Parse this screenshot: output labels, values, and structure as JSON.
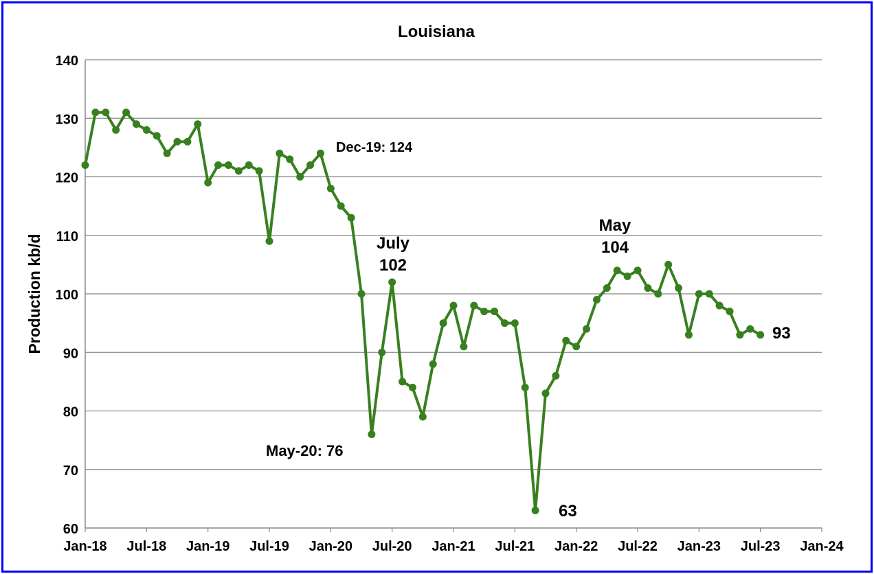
{
  "chart_data": {
    "type": "line",
    "title": "Louisiana",
    "xlabel": "",
    "ylabel": "Production kb/d",
    "ylim": [
      60,
      140
    ],
    "yticks": [
      60,
      70,
      80,
      90,
      100,
      110,
      120,
      130,
      140
    ],
    "xlim": [
      "2018-01",
      "2024-01"
    ],
    "xtick_labels": [
      "Jan-18",
      "Jul-18",
      "Jan-19",
      "Jul-19",
      "Jan-20",
      "Jul-20",
      "Jan-21",
      "Jul-21",
      "Jan-22",
      "Jul-22",
      "Jan-23",
      "Jul-23",
      "Jan-24"
    ],
    "grid": "horizontal",
    "legend": "none",
    "color": "#38801f",
    "x": [
      "2018-01",
      "2018-02",
      "2018-03",
      "2018-04",
      "2018-05",
      "2018-06",
      "2018-07",
      "2018-08",
      "2018-09",
      "2018-10",
      "2018-11",
      "2018-12",
      "2019-01",
      "2019-02",
      "2019-03",
      "2019-04",
      "2019-05",
      "2019-06",
      "2019-07",
      "2019-08",
      "2019-09",
      "2019-10",
      "2019-11",
      "2019-12",
      "2020-01",
      "2020-02",
      "2020-03",
      "2020-04",
      "2020-05",
      "2020-06",
      "2020-07",
      "2020-08",
      "2020-09",
      "2020-10",
      "2020-11",
      "2020-12",
      "2021-01",
      "2021-02",
      "2021-03",
      "2021-04",
      "2021-05",
      "2021-06",
      "2021-07",
      "2021-08",
      "2021-09",
      "2021-10",
      "2021-11",
      "2021-12",
      "2022-01",
      "2022-02",
      "2022-03",
      "2022-04",
      "2022-05",
      "2022-06",
      "2022-07",
      "2022-08",
      "2022-09",
      "2022-10",
      "2022-11",
      "2022-12",
      "2023-01",
      "2023-02",
      "2023-03",
      "2023-04",
      "2023-05",
      "2023-06",
      "2023-07"
    ],
    "values": [
      122,
      131,
      131,
      128,
      131,
      129,
      128,
      127,
      124,
      126,
      126,
      129,
      119,
      122,
      122,
      121,
      122,
      121,
      109,
      124,
      123,
      120,
      122,
      124,
      118,
      115,
      113,
      100,
      76,
      90,
      102,
      85,
      84,
      79,
      88,
      95,
      98,
      91,
      98,
      97,
      97,
      95,
      95,
      84,
      63,
      83,
      86,
      92,
      91,
      94,
      99,
      101,
      104,
      103,
      104,
      101,
      100,
      105,
      101,
      93,
      100,
      100,
      98,
      97,
      93,
      94,
      93
    ],
    "annotations": [
      {
        "text": "Dec-19: 124",
        "x": "2019-12",
        "y": 124
      },
      {
        "text": "July",
        "x": "2020-07",
        "y": 102
      },
      {
        "text": "102",
        "x": "2020-07",
        "y": 102
      },
      {
        "text": "May-20: 76",
        "x": "2020-05",
        "y": 76
      },
      {
        "text": "63",
        "x": "2021-09",
        "y": 63
      },
      {
        "text": "May",
        "x": "2022-05",
        "y": 104
      },
      {
        "text": "104",
        "x": "2022-05",
        "y": 104
      },
      {
        "text": "93",
        "x": "2023-07",
        "y": 93
      }
    ]
  }
}
